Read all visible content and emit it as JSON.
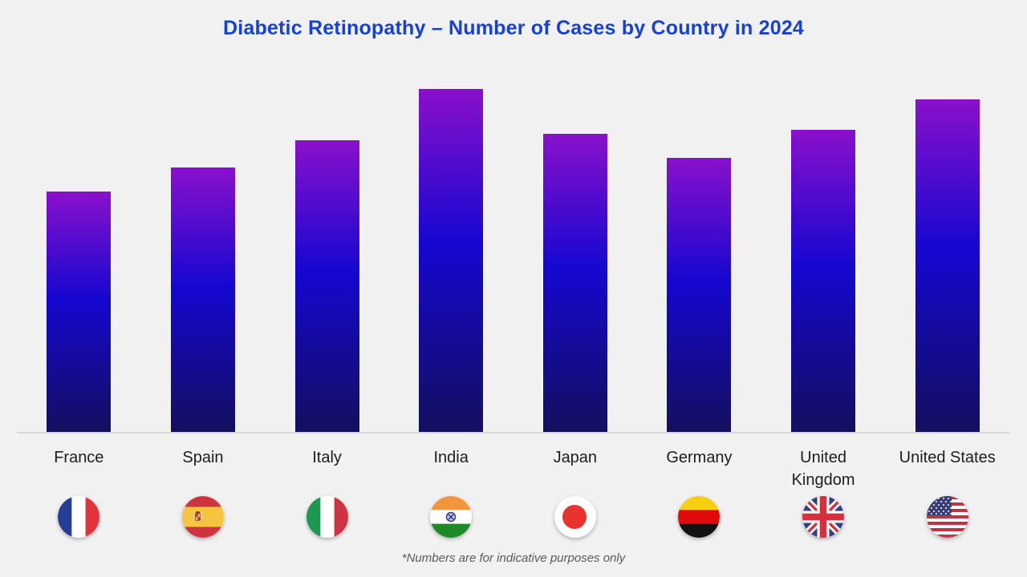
{
  "title": "Diabetic Retinopathy – Number of Cases by Country in 2024",
  "footnote": "*Numbers are for indicative purposes only",
  "chart_data": {
    "type": "bar",
    "title": "Diabetic Retinopathy – Number of Cases by Country in 2024",
    "categories": [
      "France",
      "Spain",
      "Italy",
      "India",
      "Japan",
      "Germany",
      "United Kingdom",
      "United States"
    ],
    "values": [
      70,
      77,
      85,
      100,
      87,
      80,
      88,
      97
    ],
    "value_scale": "relative bar height, percent of tallest bar (India); chart shows no numeric axis, gridlines or data labels",
    "xlabel": "",
    "ylabel": "",
    "ylim": [
      0,
      100
    ],
    "grid": false,
    "legend": null,
    "annotations": [
      "*Numbers are for indicative purposes only"
    ],
    "flag_icons": [
      "france-flag-icon",
      "spain-flag-icon",
      "italy-flag-icon",
      "india-flag-icon",
      "japan-flag-icon",
      "germany-flag-icon",
      "uk-flag-icon",
      "us-flag-icon"
    ]
  },
  "colors": {
    "background": "#f1f1f2",
    "title_text": "#1540db",
    "label_text": "#1d1d1f",
    "baseline": "#d9d9d9",
    "footnote_text": "#58595b",
    "bar_gradient_top": "#8a10cc",
    "bar_gradient_mid": "#1507d0",
    "bar_gradient_bottom": "#140f5e"
  }
}
